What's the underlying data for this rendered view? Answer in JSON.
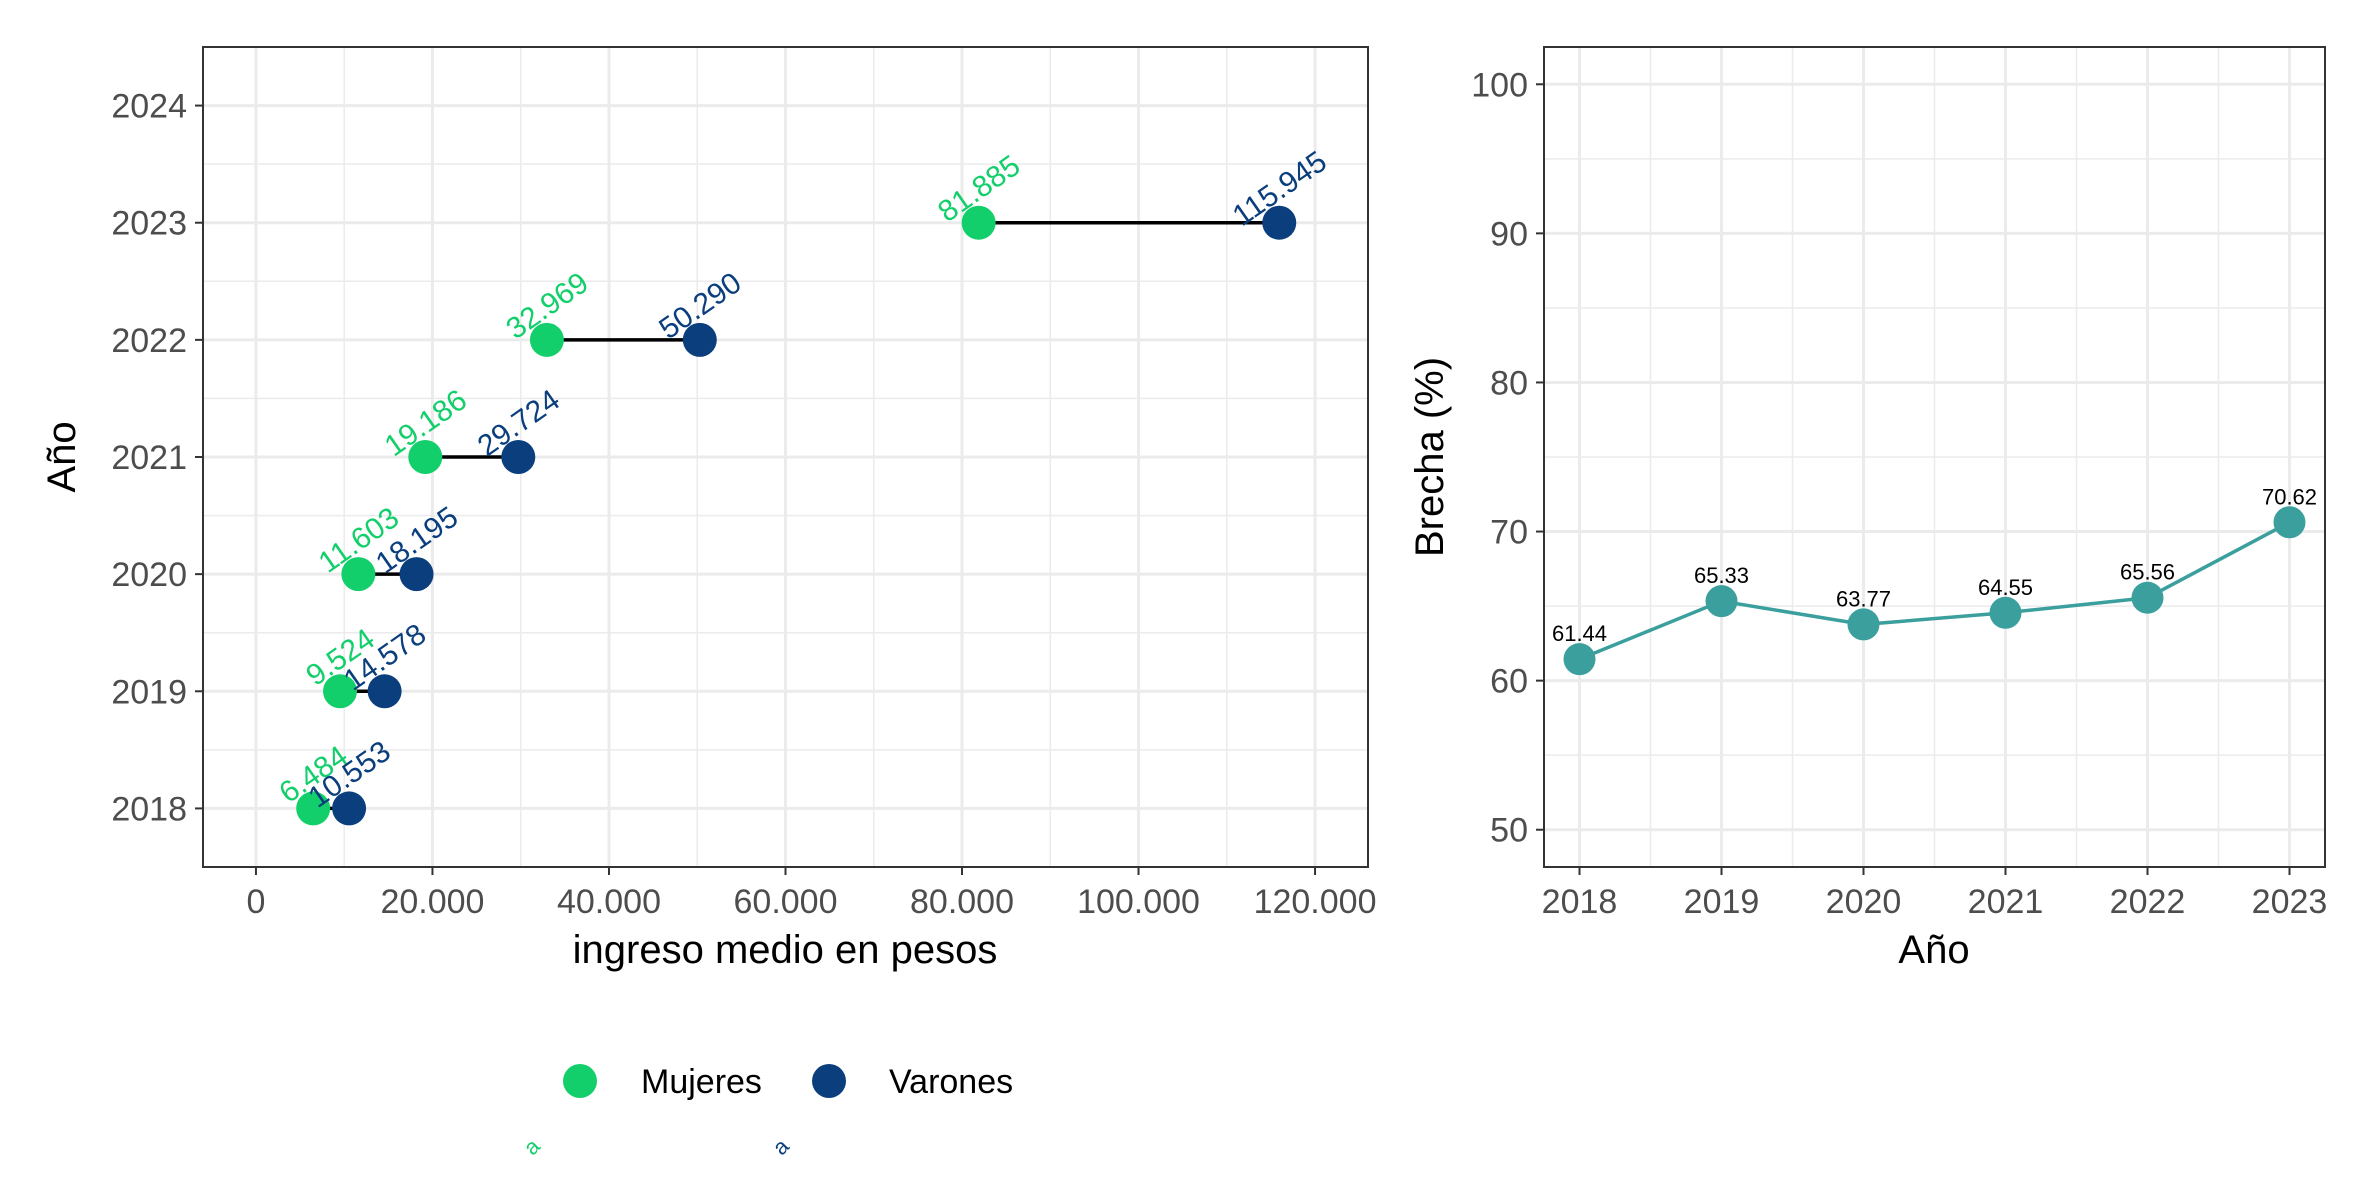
{
  "colors": {
    "mujeres": "#13cf6b",
    "varones": "#0b3e7d",
    "brecha": "#3a9f9d",
    "segment": "#000000"
  },
  "chart_data": [
    {
      "type": "dumbbell",
      "xlabel": "ingreso medio en pesos",
      "ylabel": "Año",
      "xlim": [
        -6000,
        126000
      ],
      "xticks": [
        0,
        20000,
        40000,
        60000,
        80000,
        100000,
        120000
      ],
      "xtick_labels": [
        "0",
        "20.000",
        "40.000",
        "60.000",
        "80.000",
        "100.000",
        "120.000"
      ],
      "categories": [
        "2018",
        "2019",
        "2020",
        "2021",
        "2022",
        "2023",
        "2024"
      ],
      "grid": true,
      "legend_position": "bottom",
      "series": [
        {
          "name": "Mujeres",
          "color_key": "mujeres",
          "points": [
            {
              "year": "2018",
              "value": 6484,
              "label": "6.484"
            },
            {
              "year": "2019",
              "value": 9524,
              "label": "9.524"
            },
            {
              "year": "2020",
              "value": 11603,
              "label": "11.603"
            },
            {
              "year": "2021",
              "value": 19186,
              "label": "19.186"
            },
            {
              "year": "2022",
              "value": 32969,
              "label": "32.969"
            },
            {
              "year": "2023",
              "value": 81885,
              "label": "81.885"
            }
          ]
        },
        {
          "name": "Varones",
          "color_key": "varones",
          "points": [
            {
              "year": "2018",
              "value": 10553,
              "label": "10.553"
            },
            {
              "year": "2019",
              "value": 14578,
              "label": "14.578"
            },
            {
              "year": "2020",
              "value": 18195,
              "label": "18.195"
            },
            {
              "year": "2021",
              "value": 29724,
              "label": "29.724"
            },
            {
              "year": "2022",
              "value": 50290,
              "label": "50.290"
            },
            {
              "year": "2023",
              "value": 115945,
              "label": "115.945"
            }
          ]
        }
      ],
      "legend": {
        "items": [
          {
            "label": "Mujeres",
            "color_key": "mujeres",
            "key_text": "a"
          },
          {
            "label": "Varones",
            "color_key": "varones",
            "key_text": "a"
          }
        ]
      }
    },
    {
      "type": "line",
      "xlabel": "Año",
      "ylabel": "Brecha (%)",
      "x": [
        2018,
        2019,
        2020,
        2021,
        2022,
        2023
      ],
      "xtick_labels": [
        "2018",
        "2019",
        "2020",
        "2021",
        "2022",
        "2023"
      ],
      "xlim": [
        2017.75,
        2023.25
      ],
      "ylim": [
        47.5,
        102.5
      ],
      "yticks": [
        50,
        60,
        70,
        80,
        90,
        100
      ],
      "grid": true,
      "series": [
        {
          "name": "Brecha",
          "color_key": "brecha",
          "values": [
            61.44,
            65.33,
            63.77,
            64.55,
            65.56,
            70.62
          ],
          "labels": [
            "61.44",
            "65.33",
            "63.77",
            "64.55",
            "65.56",
            "70.62"
          ]
        }
      ]
    }
  ]
}
